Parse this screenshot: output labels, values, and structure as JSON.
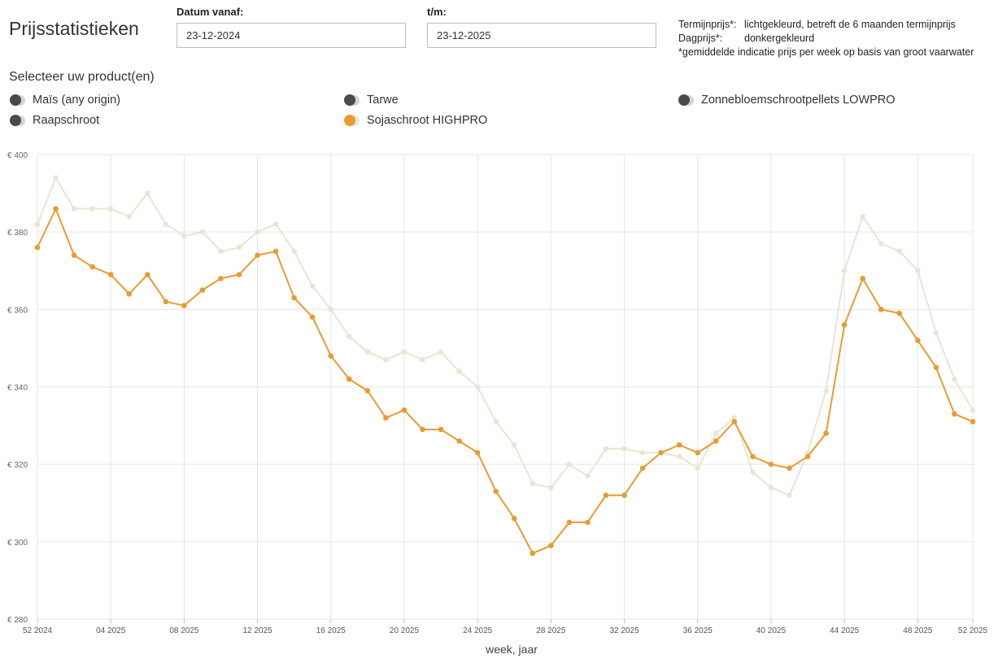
{
  "page": {
    "title": "Prijsstatistieken"
  },
  "filters": {
    "from_label": "Datum vanaf:",
    "from_value": "23-12-2024",
    "to_label": "t/m:",
    "to_value": "23-12-2025"
  },
  "legend_info": {
    "term_key": "Termijnprijs*:",
    "term_value": "lichtgekleurd, betreft de 6 maanden termijnprijs",
    "day_key": "Dagprijs*:",
    "day_value": "donkergekleurd",
    "note": "*gemiddelde indicatie prijs per week op basis van groot vaarwater"
  },
  "products": {
    "heading": "Selecteer uw product(en)",
    "items": [
      {
        "label": "Maïs (any origin)",
        "selected": false
      },
      {
        "label": "Tarwe",
        "selected": false
      },
      {
        "label": "Zonnebloemschrootpellets LOWPRO",
        "selected": false
      },
      {
        "label": "Raapschroot",
        "selected": false
      },
      {
        "label": "Sojaschroot HIGHPRO",
        "selected": true
      }
    ]
  },
  "colors": {
    "day_price": "#e99b31",
    "term_price": "#e8e5d6",
    "toggle_off": "#4a4a4a",
    "grid": "#e6e6e6"
  },
  "chart_data": {
    "type": "line",
    "x": [
      "52 2024",
      "01 2025",
      "02 2025",
      "03 2025",
      "04 2025",
      "05 2025",
      "06 2025",
      "07 2025",
      "08 2025",
      "09 2025",
      "10 2025",
      "11 2025",
      "12 2025",
      "13 2025",
      "14 2025",
      "15 2025",
      "16 2025",
      "17 2025",
      "18 2025",
      "19 2025",
      "20 2025",
      "21 2025",
      "22 2025",
      "23 2025",
      "24 2025",
      "25 2025",
      "26 2025",
      "27 2025",
      "28 2025",
      "29 2025",
      "30 2025",
      "31 2025",
      "32 2025",
      "33 2025",
      "34 2025",
      "35 2025",
      "36 2025",
      "37 2025",
      "38 2025",
      "39 2025",
      "40 2025",
      "41 2025",
      "42 2025",
      "43 2025",
      "44 2025",
      "45 2025",
      "46 2025",
      "47 2025",
      "48 2025",
      "49 2025",
      "50 2025",
      "51 2025"
    ],
    "x_tick_labels": [
      "52 2024",
      "04 2025",
      "08 2025",
      "12 2025",
      "16 2025",
      "20 2025",
      "24 2025",
      "28 2025",
      "32 2025",
      "36 2025",
      "40 2025",
      "44 2025",
      "48 2025",
      "52 2025"
    ],
    "xlabel": "week, jaar",
    "ylabel": "",
    "ylim": [
      280,
      400
    ],
    "y_tick_labels": [
      "€ 400",
      "€ 380",
      "€ 360",
      "€ 340",
      "€ 320",
      "€ 300",
      "€ 280"
    ],
    "y_ticks": [
      400,
      380,
      360,
      340,
      320,
      300,
      280
    ],
    "grid": true,
    "series": [
      {
        "role": "term",
        "color": "#e8e5d6",
        "values": [
          382,
          394,
          386,
          386,
          386,
          384,
          390,
          382,
          379,
          380,
          375,
          376,
          380,
          382,
          375,
          366,
          360,
          353,
          349,
          347,
          349,
          347,
          349,
          344,
          340,
          331,
          325,
          315,
          314,
          320,
          317,
          324,
          324,
          323,
          323,
          322,
          319,
          328,
          332,
          318,
          314,
          312,
          323,
          339,
          370,
          384,
          377,
          375,
          370,
          354,
          342,
          334
        ]
      },
      {
        "role": "day",
        "color": "#e99b31",
        "values": [
          376,
          386,
          374,
          371,
          369,
          364,
          369,
          362,
          361,
          365,
          368,
          369,
          374,
          375,
          363,
          358,
          348,
          342,
          339,
          332,
          334,
          329,
          329,
          326,
          323,
          313,
          306,
          297,
          299,
          305,
          305,
          312,
          312,
          319,
          323,
          325,
          323,
          326,
          331,
          322,
          320,
          319,
          322,
          328,
          356,
          368,
          360,
          359,
          352,
          345,
          333,
          331
        ]
      }
    ]
  }
}
